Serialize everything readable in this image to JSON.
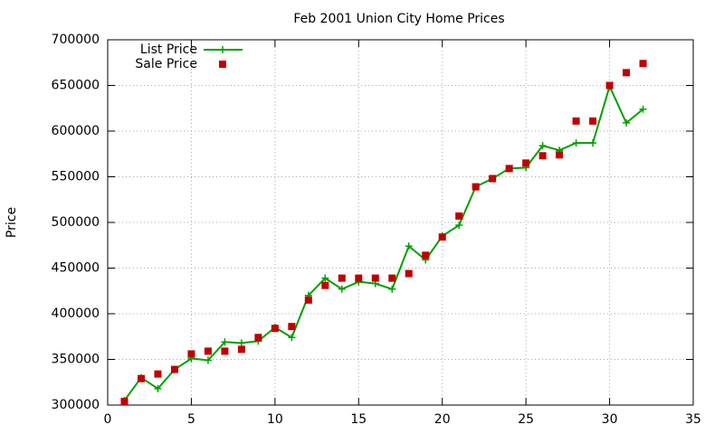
{
  "chart_data": {
    "type": "line",
    "title": "Feb 2001 Union City Home Prices",
    "y_label": "Price",
    "x": [
      1,
      2,
      3,
      4,
      5,
      6,
      7,
      8,
      9,
      10,
      11,
      12,
      13,
      14,
      15,
      16,
      17,
      18,
      19,
      20,
      21,
      22,
      23,
      24,
      25,
      26,
      27,
      28,
      29,
      30,
      31,
      32
    ],
    "series": [
      {
        "name": "List Price",
        "color": "#00a000",
        "style": "linespoints",
        "values": [
          305000,
          330000,
          318000,
          339000,
          351000,
          349000,
          369000,
          368000,
          370000,
          385000,
          374000,
          420000,
          439000,
          427000,
          435000,
          433000,
          427000,
          474000,
          459000,
          485000,
          497000,
          539000,
          548000,
          559000,
          560000,
          584000,
          579000,
          587000,
          587000,
          649000,
          609000,
          624000
        ]
      },
      {
        "name": "Sale Price",
        "color": "#c00000",
        "style": "points",
        "values": [
          304000,
          329000,
          334000,
          339000,
          356000,
          359000,
          359000,
          361000,
          374000,
          384000,
          386000,
          415000,
          431000,
          439000,
          439000,
          439000,
          439000,
          444000,
          464000,
          484000,
          507000,
          539000,
          548000,
          559000,
          565000,
          573000,
          574000,
          611000,
          611000,
          650000,
          664000,
          674000
        ]
      }
    ],
    "xlim": [
      0,
      35
    ],
    "xticks": [
      0,
      5,
      10,
      15,
      20,
      25,
      30,
      35
    ],
    "ylim": [
      300000,
      700000
    ],
    "yticks": [
      300000,
      350000,
      400000,
      450000,
      500000,
      550000,
      600000,
      650000,
      700000
    ],
    "grid": true,
    "legend": "top-left"
  }
}
